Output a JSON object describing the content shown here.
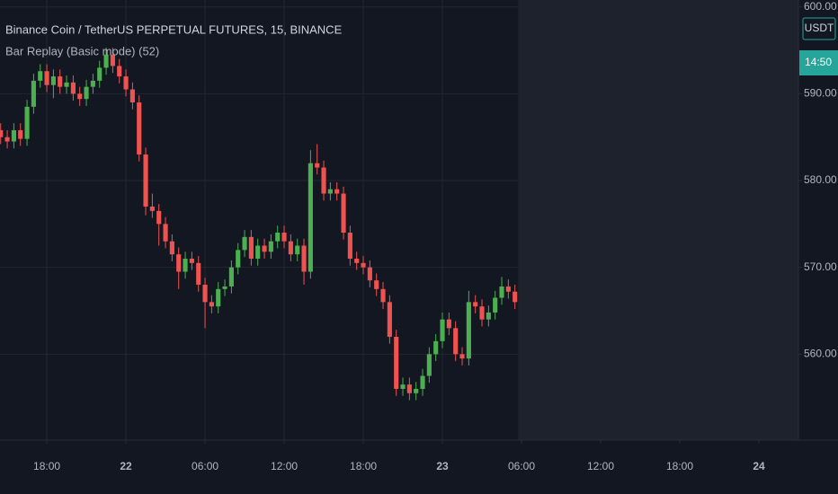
{
  "chart_data": {
    "type": "candlestick",
    "title": "Binance Coin / TetherUS PERPETUAL FUTURES, 15, BINANCE",
    "subtitle": "Bar Replay (Basic mode) (52)",
    "currency": "USDT",
    "countdown": "14:50",
    "up_color": "#4caf50",
    "down_color": "#ef5350",
    "grid": true,
    "x": [
      -9.5,
      -9,
      -8.5,
      -8,
      -7.5,
      -7,
      -6.5,
      -6,
      -5.5,
      -5,
      -4.5,
      -4,
      -3.5,
      -3,
      -2.5,
      -2,
      -1.5,
      -1,
      -0.5,
      0,
      0.5,
      1,
      1.5,
      2,
      2.5,
      3,
      3.5,
      4,
      4.5,
      5,
      5.5,
      6,
      6.5,
      7,
      7.5,
      8,
      8.5,
      9,
      9.5,
      10,
      10.5,
      11,
      11.5,
      12,
      12.5,
      13,
      13.5,
      14,
      14.5,
      15,
      15.5,
      16,
      16.5,
      17,
      17.5,
      18,
      18.5,
      19,
      19.5,
      20,
      20.5,
      21,
      21.5,
      22,
      22.5,
      23,
      23.5,
      24,
      24.5,
      25,
      25.5,
      26,
      26.5,
      27,
      27.5,
      28,
      28.5,
      29,
      29.5
    ],
    "open": [
      585.8,
      585,
      584.5,
      585.8,
      584.8,
      588.5,
      591.5,
      592.6,
      591,
      592,
      590.8,
      591.3,
      590,
      589.4,
      590.8,
      591.5,
      593,
      594.5,
      593.2,
      592,
      590.5,
      589,
      583,
      577,
      576.5,
      575,
      573,
      571.5,
      569.5,
      571,
      570.5,
      568,
      566,
      565.5,
      567.5,
      567.8,
      570,
      572,
      573.5,
      571,
      572.5,
      571.8,
      573,
      574,
      573,
      571.5,
      572.5,
      569.5,
      582,
      581.5,
      578.5,
      579,
      578.5,
      574,
      571,
      570.5,
      570,
      568.5,
      567.5,
      566,
      562,
      556,
      556.5,
      555.5,
      556,
      557.5,
      560,
      561.5,
      564,
      563,
      560,
      559.5,
      566,
      565.5,
      564,
      564.8,
      566.5,
      567.8,
      567.2
    ],
    "high": [
      586.6,
      585.8,
      586.6,
      586.6,
      589.3,
      592.3,
      593.4,
      593.4,
      592.8,
      592.8,
      592.1,
      592.1,
      590.8,
      591.6,
      592.3,
      593.8,
      595.3,
      595.3,
      594,
      592.8,
      591.3,
      589.8,
      583.8,
      578.5,
      577.3,
      575.8,
      573.8,
      572.3,
      571.8,
      571.8,
      571.3,
      568.8,
      566.8,
      568.3,
      568.6,
      570.8,
      572.8,
      574.3,
      574.3,
      573.3,
      573.3,
      573.8,
      574.8,
      574.8,
      573.8,
      573.3,
      573.3,
      583.5,
      584.2,
      582.3,
      579.8,
      579.8,
      579.3,
      574.8,
      571.8,
      571.3,
      570.8,
      569.3,
      568.3,
      566.8,
      562.8,
      557.3,
      557.3,
      556.8,
      558.3,
      560.8,
      562.3,
      564.8,
      564.8,
      563.8,
      560.8,
      567.3,
      566.8,
      566.3,
      565.6,
      567.3,
      568.9,
      568.6,
      568
    ],
    "low": [
      584.2,
      583.7,
      583.7,
      584,
      584,
      587.7,
      590.7,
      590.2,
      589.5,
      590,
      590,
      589.2,
      588.6,
      588.6,
      590,
      590.7,
      592.2,
      592.4,
      591.2,
      589.7,
      588.2,
      582.2,
      576,
      575.7,
      572.5,
      572.2,
      570.7,
      567.5,
      568.7,
      569.7,
      567.2,
      563,
      564.7,
      564.7,
      566.7,
      567,
      569.2,
      571.2,
      570.2,
      570.2,
      571,
      571,
      572.2,
      572.2,
      570.7,
      570.7,
      568,
      568.7,
      580.7,
      577.7,
      577.7,
      577.7,
      573.2,
      570.2,
      569.7,
      569.2,
      567.7,
      566.7,
      565.2,
      561.2,
      555.2,
      555.2,
      554.7,
      554.7,
      555.2,
      556.7,
      559.2,
      560.7,
      562.2,
      559.2,
      558.7,
      558.7,
      564.7,
      563.2,
      563.2,
      564,
      565.7,
      566.4,
      565.2
    ],
    "close": [
      585,
      584.5,
      585.8,
      584.8,
      588.5,
      591.5,
      592.6,
      591,
      592,
      590.8,
      591.3,
      590,
      589.4,
      590.8,
      591.5,
      593,
      594.5,
      593.2,
      592,
      590.5,
      589,
      583,
      577,
      576.5,
      575,
      573,
      571.5,
      569.5,
      571,
      570.5,
      568,
      566,
      565.5,
      567.5,
      567.8,
      570,
      572,
      573.5,
      571,
      572.5,
      571.8,
      573,
      574,
      573,
      571.5,
      572.5,
      569.5,
      582,
      581.5,
      578.5,
      579,
      578.5,
      574,
      571,
      570.5,
      570,
      568.5,
      567.5,
      566,
      562,
      556,
      556.5,
      555.5,
      556,
      557.5,
      560,
      561.5,
      564,
      563,
      560,
      559.5,
      566,
      565.5,
      564,
      564.8,
      566.5,
      567.8,
      567.2,
      566
    ],
    "xlim": [
      -9.55,
      51
    ],
    "xticks": [
      {
        "value": -6,
        "label": "18:00"
      },
      {
        "value": 0,
        "label": "22"
      },
      {
        "value": 6,
        "label": "06:00"
      },
      {
        "value": 12,
        "label": "12:00"
      },
      {
        "value": 18,
        "label": "18:00"
      },
      {
        "value": 24,
        "label": "23"
      },
      {
        "value": 30,
        "label": "06:00"
      },
      {
        "value": 36,
        "label": "12:00"
      },
      {
        "value": 42,
        "label": "18:00"
      },
      {
        "value": 48,
        "label": "24"
      }
    ],
    "ylim": [
      550.1,
      600.8
    ],
    "yticks": [
      {
        "value": 560,
        "label": "560.00"
      },
      {
        "value": 570,
        "label": "570.00"
      },
      {
        "value": 580,
        "label": "580.00"
      },
      {
        "value": 590,
        "label": "590.00"
      },
      {
        "value": 600,
        "label": "600.00"
      }
    ]
  }
}
